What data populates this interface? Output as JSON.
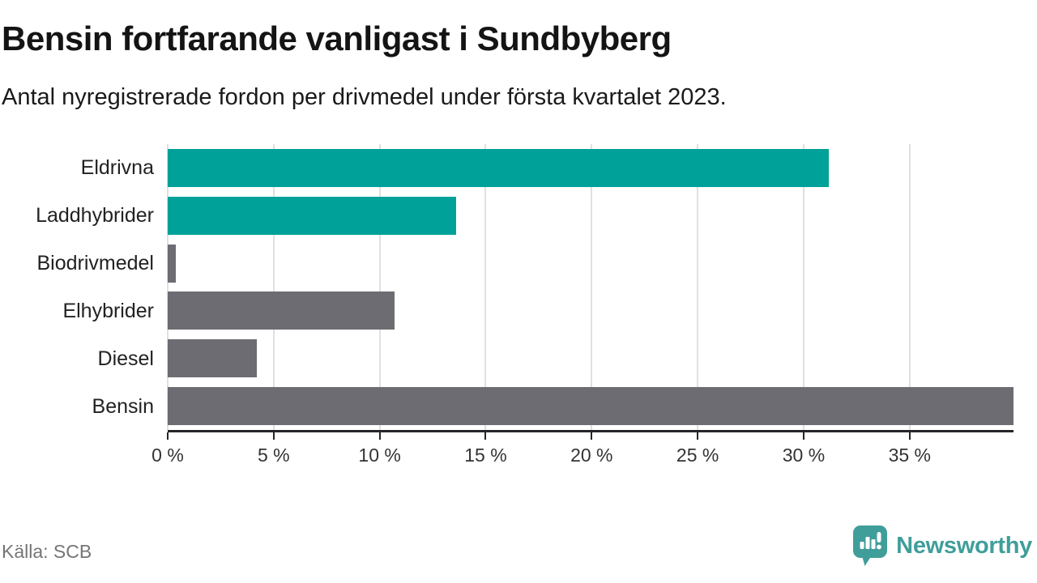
{
  "header": {
    "title": "Bensin fortfarande vanligast i Sundbyberg",
    "subtitle": "Antal nyregistrerade fordon per drivmedel under första kvartalet 2023."
  },
  "chart_data": {
    "type": "bar",
    "orientation": "horizontal",
    "title": "Bensin fortfarande vanligast i Sundbyberg",
    "subtitle": "Antal nyregistrerade fordon per drivmedel under första kvartalet 2023.",
    "categories": [
      "Eldrivna",
      "Laddhybrider",
      "Biodrivmedel",
      "Elhybrider",
      "Diesel",
      "Bensin"
    ],
    "values": [
      31.2,
      13.6,
      0.4,
      10.7,
      4.2,
      39.9
    ],
    "unit": "%",
    "bar_colors": [
      "#00a199",
      "#00a199",
      "#6c6c72",
      "#6c6c72",
      "#6c6c72",
      "#6c6c72"
    ],
    "xlim": [
      0,
      39.9
    ],
    "xticks": [
      0,
      5,
      10,
      15,
      20,
      25,
      30,
      35
    ],
    "xtick_labels": [
      "0 %",
      "5 %",
      "10 %",
      "15 %",
      "20 %",
      "25 %",
      "30 %",
      "35 %"
    ],
    "grid": "vertical-gridlines-behind-bars",
    "legend": "none",
    "ylabel": "",
    "xlabel": ""
  },
  "footer": {
    "source": "Källa: SCB",
    "brand": "Newsworthy"
  },
  "colors": {
    "accent_teal": "#00a199",
    "bar_gray": "#6c6c72",
    "brand_teal": "#3f9e9a",
    "gridline": "#e0e0e0",
    "axis": "#26262a",
    "text_dark": "#141414",
    "text_muted": "#757575"
  }
}
